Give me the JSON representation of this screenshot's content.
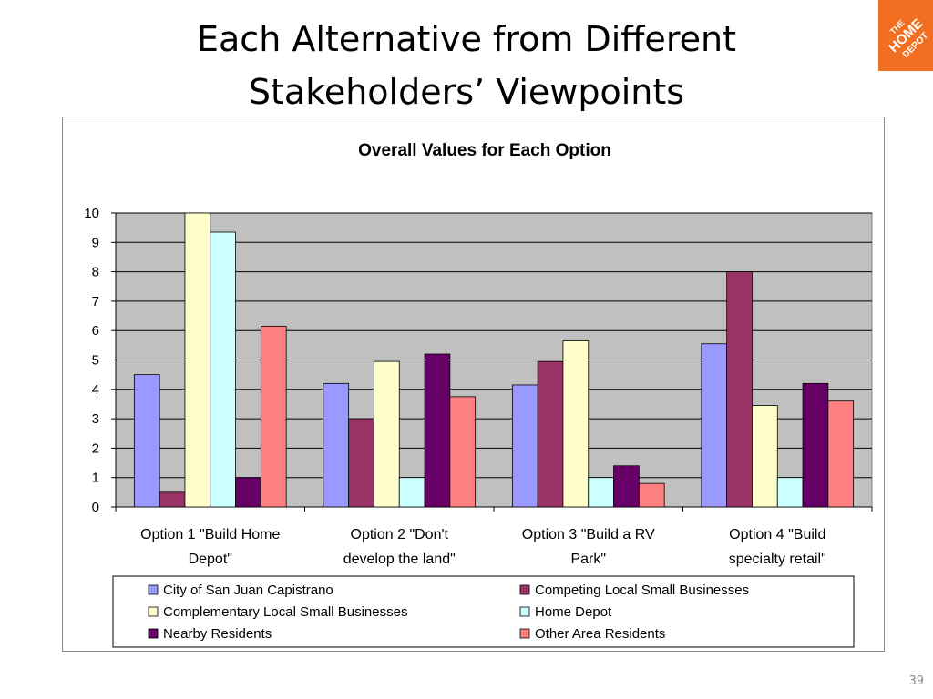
{
  "slide": {
    "title_line1": "Each Alternative from Different",
    "title_line2": "Stakeholders’ Viewpoints",
    "page_number": "39",
    "logo": {
      "text_line1": "THE",
      "text_line2": "HOME",
      "text_line3": "DEPOT",
      "color": "#f26f21"
    }
  },
  "chart_data": {
    "type": "bar",
    "title": "Overall Values for Each Option",
    "categories": [
      [
        "Option 1 \"Build Home",
        "Depot\""
      ],
      [
        "Option 2 \"Don't",
        "develop the land\""
      ],
      [
        "Option 3 \"Build a RV",
        "Park\""
      ],
      [
        "Option 4 \"Build",
        "specialty retail\""
      ]
    ],
    "ylim": [
      0,
      10
    ],
    "yticks": [
      "0",
      "1",
      "2",
      "3",
      "4",
      "5",
      "6",
      "7",
      "8",
      "9",
      "10"
    ],
    "grid": true,
    "plot_background": "#c0c0c0",
    "legend_position": "bottom",
    "series": [
      {
        "name": "City of San Juan Capistrano",
        "color": "#9999ff",
        "values": [
          4.5,
          4.2,
          4.15,
          5.55
        ]
      },
      {
        "name": "Competing Local Small Businesses",
        "color": "#993366",
        "values": [
          0.5,
          3.0,
          4.95,
          8.0
        ]
      },
      {
        "name": "Complementary Local Small Businesses",
        "color": "#ffffcc",
        "values": [
          10.0,
          4.95,
          5.65,
          3.45
        ]
      },
      {
        "name": "Home Depot",
        "color": "#ccffff",
        "values": [
          9.35,
          1.0,
          1.0,
          1.0
        ]
      },
      {
        "name": "Nearby Residents",
        "color": "#660066",
        "values": [
          1.0,
          5.2,
          1.4,
          4.2
        ]
      },
      {
        "name": "Other Area Residents",
        "color": "#ff8080",
        "values": [
          6.15,
          3.75,
          0.8,
          3.6
        ]
      }
    ]
  }
}
